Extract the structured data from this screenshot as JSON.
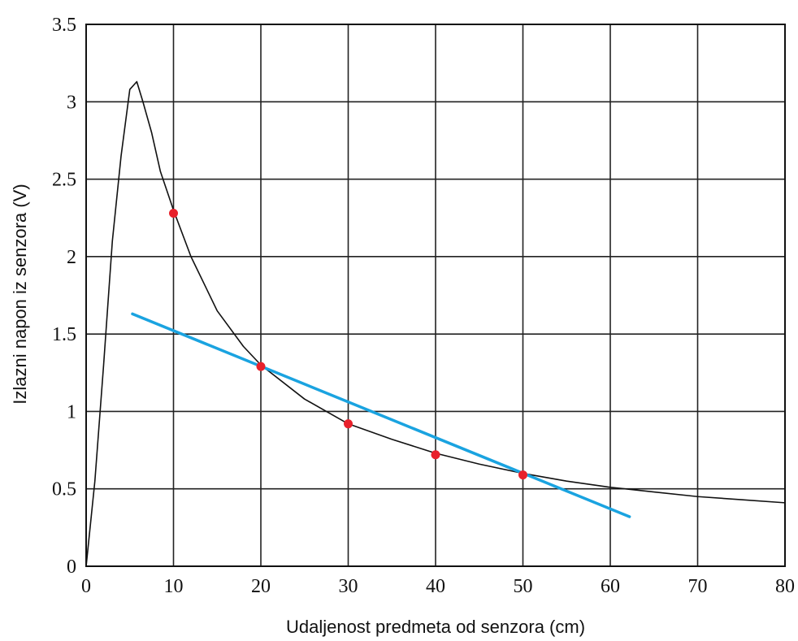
{
  "chart_data": {
    "type": "line",
    "xlabel": "Udaljenost predmeta od senzora (cm)",
    "ylabel": "Izlazni napon iz senzora (V)",
    "xlim": [
      0,
      80
    ],
    "ylim": [
      0,
      3.5
    ],
    "x_ticks": [
      0,
      10,
      20,
      30,
      40,
      50,
      60,
      70,
      80
    ],
    "y_ticks": [
      0,
      0.5,
      1,
      1.5,
      2,
      2.5,
      3,
      3.5
    ],
    "x_tick_labels": [
      "0",
      "10",
      "20",
      "30",
      "40",
      "50",
      "60",
      "70",
      "80"
    ],
    "y_tick_labels": [
      "0",
      "0.5",
      "1",
      "1.5",
      "2",
      "2.5",
      "3",
      "3.5"
    ],
    "grid": true,
    "series": [
      {
        "kind": "curve",
        "color": "#111111",
        "points": [
          [
            0,
            0
          ],
          [
            1,
            0.55
          ],
          [
            2,
            1.3
          ],
          [
            3,
            2.1
          ],
          [
            4,
            2.65
          ],
          [
            5,
            3.08
          ],
          [
            5.8,
            3.13
          ],
          [
            6.5,
            3.0
          ],
          [
            7.5,
            2.8
          ],
          [
            8.5,
            2.55
          ],
          [
            10,
            2.3
          ],
          [
            12,
            2.0
          ],
          [
            15,
            1.65
          ],
          [
            18,
            1.42
          ],
          [
            20,
            1.3
          ],
          [
            25,
            1.08
          ],
          [
            30,
            0.92
          ],
          [
            35,
            0.82
          ],
          [
            40,
            0.73
          ],
          [
            45,
            0.66
          ],
          [
            50,
            0.6
          ],
          [
            55,
            0.55
          ],
          [
            60,
            0.51
          ],
          [
            65,
            0.48
          ],
          [
            70,
            0.45
          ],
          [
            75,
            0.43
          ],
          [
            80,
            0.41
          ]
        ]
      },
      {
        "kind": "fit-line",
        "color": "#1aa3e0",
        "points": [
          [
            5.3,
            1.63
          ],
          [
            62.2,
            0.32
          ]
        ]
      },
      {
        "kind": "markers",
        "color": "#e8212b",
        "points": [
          [
            10,
            2.28
          ],
          [
            20,
            1.29
          ],
          [
            30,
            0.92
          ],
          [
            40,
            0.72
          ],
          [
            50,
            0.59
          ]
        ]
      }
    ]
  }
}
